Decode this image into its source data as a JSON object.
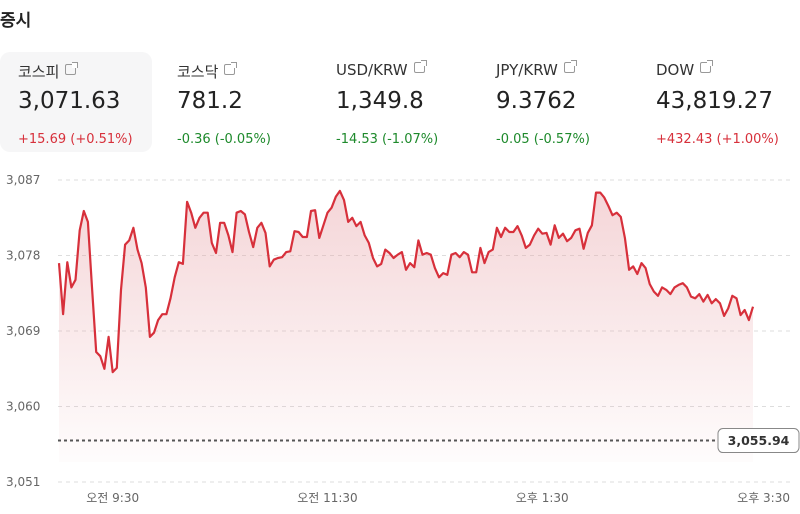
{
  "header": {
    "title": "증시"
  },
  "cards": [
    {
      "name": "코스피",
      "value": "3,071.63",
      "change": "+15.69 (+0.51%)",
      "direction": "up",
      "active": true
    },
    {
      "name": "코스닥",
      "value": "781.2",
      "change": "-0.36 (-0.05%)",
      "direction": "down"
    },
    {
      "name": "USD/KRW",
      "value": "1,349.8",
      "change": "-14.53 (-1.07%)",
      "direction": "down"
    },
    {
      "name": "JPY/KRW",
      "value": "9.3762",
      "change": "-0.05 (-0.57%)",
      "direction": "down"
    },
    {
      "name": "DOW",
      "value": "43,819.27",
      "change": "+432.43 (+1.00%)",
      "direction": "up"
    }
  ],
  "icons": {
    "card_link": "external-link-icon"
  },
  "colors": {
    "up": "#d7303b",
    "down": "#1e8a2c",
    "line": "#d7303b"
  },
  "chart_data": {
    "type": "area",
    "ylim": [
      3051,
      3087
    ],
    "yticks": [
      "3,087",
      "3,078",
      "3,069",
      "3,060",
      "3,051"
    ],
    "ytick_values": [
      3087,
      3078,
      3069,
      3060,
      3051
    ],
    "x_range": [
      "09:00",
      "15:30"
    ],
    "xticks": [
      {
        "label": "오전 9:30",
        "time": "09:30"
      },
      {
        "label": "오전 11:30",
        "time": "11:30"
      },
      {
        "label": "오후 1:30",
        "time": "13:30"
      },
      {
        "label": "오후 3:30",
        "time": "15:30"
      }
    ],
    "grid": true,
    "baseline": {
      "value": 3055.94,
      "label": "3,055.94"
    },
    "values": [
      3077.1,
      3071.0,
      3077.2,
      3074.2,
      3075.1,
      3081.0,
      3083.3,
      3082.0,
      3074.2,
      3066.5,
      3066.0,
      3064.5,
      3068.3,
      3064.1,
      3064.6,
      3073.9,
      3079.3,
      3079.8,
      3081.3,
      3078.7,
      3077.1,
      3074.2,
      3068.3,
      3068.8,
      3070.3,
      3071.0,
      3071.0,
      3072.9,
      3075.4,
      3077.2,
      3077.0,
      3084.4,
      3083.1,
      3081.3,
      3082.5,
      3083.1,
      3083.1,
      3079.5,
      3078.3,
      3081.9,
      3081.9,
      3080.4,
      3078.4,
      3083.1,
      3083.3,
      3082.9,
      3080.8,
      3079.0,
      3081.3,
      3081.9,
      3080.7,
      3076.7,
      3077.5,
      3077.7,
      3077.8,
      3078.4,
      3078.5,
      3080.9,
      3080.8,
      3080.2,
      3080.2,
      3083.3,
      3083.4,
      3080.1,
      3081.6,
      3083.1,
      3083.7,
      3085.0,
      3085.7,
      3084.6,
      3082.0,
      3082.5,
      3081.5,
      3082.0,
      3080.4,
      3079.5,
      3077.7,
      3076.7,
      3077.0,
      3078.7,
      3078.3,
      3077.7,
      3078.1,
      3078.4,
      3076.3,
      3077.1,
      3076.6,
      3079.8,
      3078.1,
      3078.3,
      3078.1,
      3076.5,
      3075.4,
      3075.9,
      3075.7,
      3078.1,
      3078.3,
      3077.8,
      3078.4,
      3078.1,
      3076.0,
      3076.0,
      3078.9,
      3077.1,
      3078.4,
      3078.7,
      3081.3,
      3080.2,
      3081.3,
      3080.8,
      3080.8,
      3081.5,
      3080.4,
      3078.9,
      3079.3,
      3080.4,
      3081.2,
      3080.6,
      3080.7,
      3079.3,
      3081.6,
      3080.1,
      3080.6,
      3079.7,
      3080.1,
      3081.0,
      3081.2,
      3078.8,
      3080.7,
      3081.6,
      3085.5,
      3085.5,
      3084.9,
      3083.9,
      3082.8,
      3083.1,
      3082.6,
      3080.1,
      3076.3,
      3076.7,
      3075.8,
      3077.1,
      3076.5,
      3074.6,
      3073.7,
      3073.2,
      3074.2,
      3073.9,
      3073.4,
      3074.2,
      3074.5,
      3074.7,
      3074.2,
      3073.1,
      3072.9,
      3073.4,
      3072.5,
      3073.3,
      3072.3,
      3072.8,
      3072.3,
      3070.8,
      3071.7,
      3073.2,
      3072.9,
      3070.9,
      3071.5,
      3070.3,
      3071.9
    ]
  }
}
